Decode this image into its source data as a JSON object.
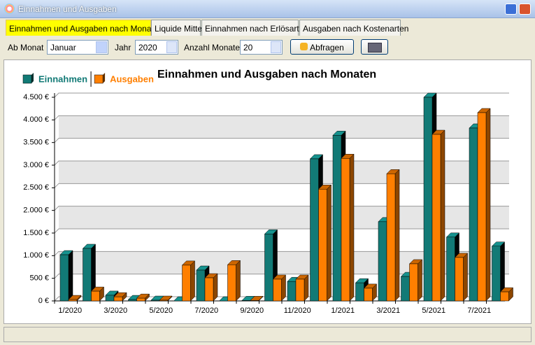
{
  "window": {
    "title": "Einnahmen und Ausgaben"
  },
  "tabs": [
    "Einnahmen und Ausgaben nach Monaten",
    "Liquide Mittel",
    "Einnahmen nach Erlösarten",
    "Ausgaben nach Kostenarten"
  ],
  "controls": {
    "month_label": "Ab Monat",
    "month": "Januar",
    "year_label": "Jahr",
    "year": "2020",
    "count_label": "Anzahl Monate",
    "count": "20",
    "button": "Abfragen"
  },
  "chart_data": {
    "type": "bar3d",
    "title": "Einnahmen und Ausgaben nach Monaten",
    "categories": [
      "1/2020",
      null,
      "3/2020",
      null,
      "5/2020",
      null,
      "7/2020",
      null,
      "9/2020",
      null,
      "11/2020",
      null,
      "1/2021",
      null,
      "3/2021",
      null,
      "5/2021",
      null,
      "7/2021",
      null
    ],
    "series": [
      {
        "name": "Einnahmen",
        "color": "#127a76",
        "values": [
          1020,
          1160,
          125,
          30,
          15,
          0,
          680,
          0,
          10,
          1480,
          430,
          3140,
          3660,
          400,
          1750,
          540,
          4500,
          1410,
          3820,
          1210
        ]
      },
      {
        "name": "Ausgaben",
        "color": "#ff7f00",
        "values": [
          30,
          215,
          90,
          60,
          15,
          790,
          510,
          800,
          10,
          480,
          480,
          2470,
          3150,
          280,
          2810,
          820,
          3680,
          960,
          4160,
          200
        ]
      }
    ],
    "ylim": [
      0,
      4500
    ],
    "yticks": [
      {
        "value": 0,
        "label": "0 €"
      },
      {
        "value": 500,
        "label": "500 €"
      },
      {
        "value": 1000,
        "label": "1.000 €"
      },
      {
        "value": 1500,
        "label": "1.500 €"
      },
      {
        "value": 2000,
        "label": "2.000 €"
      },
      {
        "value": 2500,
        "label": "2.500 €"
      },
      {
        "value": 3000,
        "label": "3.000 €"
      },
      {
        "value": 3500,
        "label": "3.500 €"
      },
      {
        "value": 4000,
        "label": "4.000 €"
      },
      {
        "value": 4500,
        "label": "4.500 €"
      }
    ],
    "grid": true
  }
}
